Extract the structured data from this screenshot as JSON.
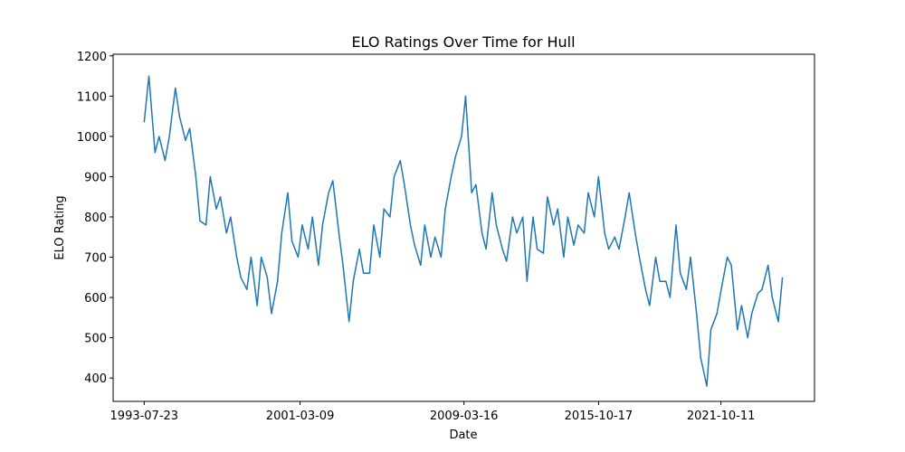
{
  "chart_data": {
    "type": "line",
    "title": "ELO Ratings Over Time for Hull",
    "x_label": "Date",
    "y_label": "ELO Rating",
    "xlim": [
      "1992-01-15",
      "2026-05-10"
    ],
    "ylim": [
      342,
      1204
    ],
    "xticks": [
      "1993-07-23",
      "2001-03-09",
      "2009-03-16",
      "2015-10-17",
      "2021-10-11"
    ],
    "yticks": [
      400,
      500,
      600,
      700,
      800,
      900,
      1000,
      1100,
      1200
    ],
    "series": [
      {
        "name": "Hull",
        "color": "#1f77b4",
        "x": [
          "1993-07-23",
          "1993-10-15",
          "1994-02-01",
          "1994-04-15",
          "1994-08-01",
          "1994-10-15",
          "1995-02-01",
          "1995-04-15",
          "1995-08-01",
          "1995-10-15",
          "1996-02-01",
          "1996-04-15",
          "1996-08-01",
          "1996-10-15",
          "1997-02-01",
          "1997-04-15",
          "1997-08-01",
          "1997-10-15",
          "1998-02-01",
          "1998-04-15",
          "1998-08-01",
          "1998-10-15",
          "1999-02-01",
          "1999-04-15",
          "1999-08-01",
          "1999-10-15",
          "2000-02-01",
          "2000-04-15",
          "2000-08-01",
          "2000-10-15",
          "2001-02-01",
          "2001-04-15",
          "2001-08-01",
          "2001-10-15",
          "2002-02-01",
          "2002-04-15",
          "2002-08-01",
          "2002-10-15",
          "2003-02-01",
          "2003-04-15",
          "2003-08-01",
          "2003-10-15",
          "2004-02-01",
          "2004-04-15",
          "2004-08-01",
          "2004-10-15",
          "2005-02-01",
          "2005-04-15",
          "2005-08-01",
          "2005-10-15",
          "2006-02-01",
          "2006-04-15",
          "2006-08-01",
          "2006-10-15",
          "2007-02-01",
          "2007-04-15",
          "2007-08-01",
          "2007-10-15",
          "2008-02-01",
          "2008-04-15",
          "2008-08-01",
          "2008-10-15",
          "2009-02-01",
          "2009-04-15",
          "2009-08-01",
          "2009-10-15",
          "2010-02-01",
          "2010-04-15",
          "2010-08-01",
          "2010-10-15",
          "2011-02-01",
          "2011-04-15",
          "2011-08-01",
          "2011-10-15",
          "2012-02-01",
          "2012-04-15",
          "2012-08-01",
          "2012-10-15",
          "2013-02-01",
          "2013-04-15",
          "2013-08-01",
          "2013-10-15",
          "2014-02-01",
          "2014-04-15",
          "2014-08-01",
          "2014-10-15",
          "2015-02-01",
          "2015-04-15",
          "2015-08-01",
          "2015-10-15",
          "2016-02-01",
          "2016-04-15",
          "2016-08-01",
          "2016-10-15",
          "2017-02-01",
          "2017-04-15",
          "2017-08-01",
          "2017-10-15",
          "2018-02-01",
          "2018-04-15",
          "2018-08-01",
          "2018-10-15",
          "2019-02-01",
          "2019-04-15",
          "2019-08-01",
          "2019-10-15",
          "2020-02-01",
          "2020-04-15",
          "2020-08-01",
          "2020-10-15",
          "2021-02-01",
          "2021-04-15",
          "2021-08-01",
          "2021-10-15",
          "2022-02-01",
          "2022-04-15",
          "2022-08-01",
          "2022-10-15",
          "2023-02-01",
          "2023-04-15",
          "2023-08-01",
          "2023-10-15",
          "2024-02-01",
          "2024-04-15",
          "2024-08-01",
          "2024-10-15"
        ],
        "values": [
          1035,
          1150,
          960,
          1000,
          940,
          1000,
          1120,
          1050,
          990,
          1020,
          900,
          790,
          780,
          900,
          820,
          850,
          760,
          800,
          700,
          650,
          620,
          700,
          580,
          700,
          650,
          560,
          640,
          760,
          860,
          740,
          700,
          780,
          720,
          800,
          680,
          780,
          860,
          890,
          760,
          680,
          540,
          640,
          720,
          660,
          660,
          780,
          700,
          820,
          800,
          900,
          940,
          880,
          780,
          730,
          680,
          780,
          700,
          750,
          700,
          820,
          900,
          950,
          1000,
          1100,
          860,
          880,
          760,
          720,
          860,
          780,
          720,
          690,
          800,
          760,
          800,
          640,
          800,
          720,
          710,
          850,
          780,
          820,
          700,
          800,
          730,
          780,
          760,
          860,
          800,
          900,
          760,
          720,
          750,
          720,
          800,
          860,
          760,
          700,
          620,
          580,
          700,
          640,
          640,
          600,
          780,
          660,
          620,
          700,
          560,
          450,
          380,
          520,
          560,
          620,
          700,
          680,
          520,
          580,
          500,
          560,
          610,
          620,
          680,
          600,
          540,
          650
        ]
      }
    ]
  }
}
